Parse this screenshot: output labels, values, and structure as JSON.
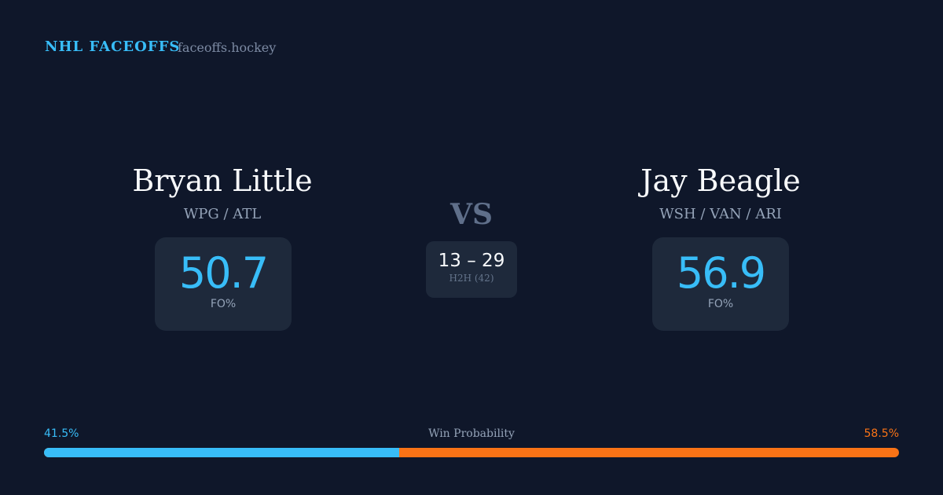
{
  "header": {
    "brand": "NHL FACEOFFS",
    "site": "faceoffs.hockey"
  },
  "left": {
    "name": "Bryan Little",
    "teams": "WPG / ATL",
    "fo_pct": "50.7",
    "fo_label": "FO%"
  },
  "right": {
    "name": "Jay Beagle",
    "teams": "WSH / VAN / ARI",
    "fo_pct": "56.9",
    "fo_label": "FO%"
  },
  "center": {
    "vs": "VS",
    "h2h_score": "13 – 29",
    "h2h_label": "H2H (42)"
  },
  "probability": {
    "label": "Win Probability",
    "left_pct": "41.5%",
    "right_pct": "58.5%",
    "left_value": 41.5,
    "right_value": 58.5,
    "colors": {
      "left": "#38bdf8",
      "right": "#f97316"
    }
  }
}
